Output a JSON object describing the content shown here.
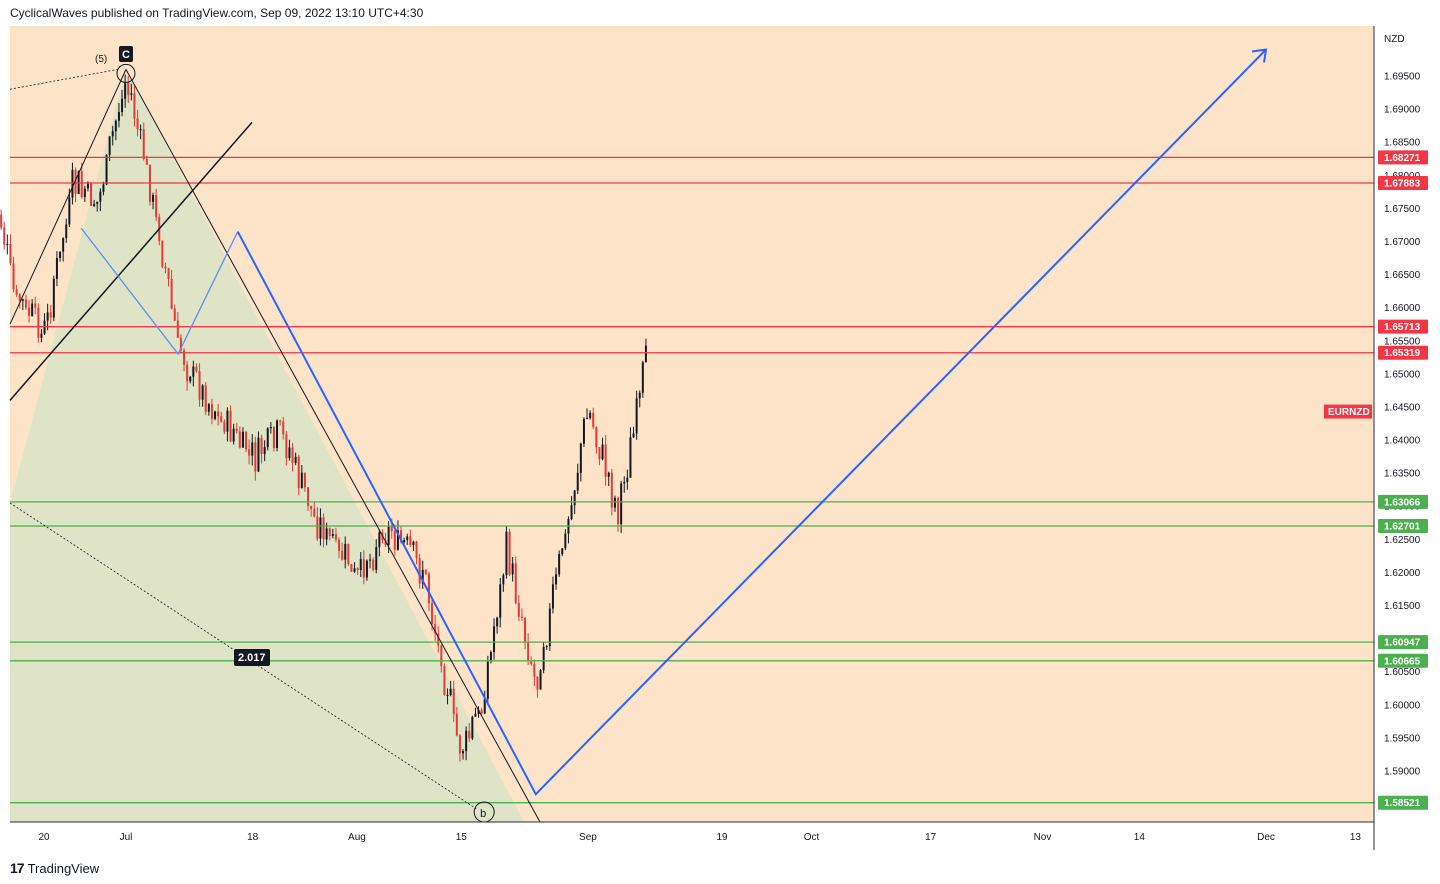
{
  "header": {
    "text": "CyclicalWaves published on TradingView.com, Sep 09, 2022 13:10 UTC+4:30"
  },
  "footer": {
    "logo": "17",
    "brand": "TradingView"
  },
  "colors": {
    "background": "#fde4c8",
    "red_level": "#f23645",
    "green_level": "#4caf50",
    "blue_path": "#2962ff",
    "triangle_fill": "#d8e4c4",
    "up_candle": "#131722",
    "down_candle": "#e53935"
  },
  "chart_data": {
    "type": "candlestick",
    "symbol": "EURNZD",
    "currency": "NZD",
    "x_ticks": [
      {
        "label": "20",
        "date": "2022-06-20"
      },
      {
        "label": "Jul",
        "date": "2022-07-01"
      },
      {
        "label": "18",
        "date": "2022-07-18"
      },
      {
        "label": "Aug",
        "date": "2022-08-01"
      },
      {
        "label": "15",
        "date": "2022-08-15"
      },
      {
        "label": "Sep",
        "date": "2022-09-01"
      },
      {
        "label": "19",
        "date": "2022-09-19"
      },
      {
        "label": "Oct",
        "date": "2022-10-01"
      },
      {
        "label": "17",
        "date": "2022-10-17"
      },
      {
        "label": "Nov",
        "date": "2022-11-01"
      },
      {
        "label": "14",
        "date": "2022-11-14"
      },
      {
        "label": "Dec",
        "date": "2022-12-01"
      },
      {
        "label": "13",
        "date": "2022-12-13"
      }
    ],
    "y_ticks": [
      "1.69500",
      "1.69000",
      "1.68500",
      "1.68000",
      "1.67500",
      "1.67000",
      "1.66500",
      "1.66000",
      "1.65500",
      "1.65000",
      "1.64500",
      "1.64000",
      "1.63500",
      "1.63000",
      "1.62500",
      "1.62000",
      "1.61500",
      "1.61000",
      "1.60500",
      "1.60000",
      "1.59500",
      "1.59000"
    ],
    "ylim": [
      1.5815,
      1.7005
    ],
    "levels": [
      {
        "value": 1.68271,
        "label": "1.68271",
        "color": "red"
      },
      {
        "value": 1.67883,
        "label": "1.67883",
        "color": "red"
      },
      {
        "value": 1.65713,
        "label": "1.65713",
        "color": "red"
      },
      {
        "value": 1.65319,
        "label": "1.65319",
        "color": "red"
      },
      {
        "value": 1.63066,
        "label": "1.63066",
        "color": "green"
      },
      {
        "value": 1.62701,
        "label": "1.62701",
        "color": "green"
      },
      {
        "value": 1.60947,
        "label": "1.60947",
        "color": "green"
      },
      {
        "value": 1.60665,
        "label": "1.60665",
        "color": "green"
      },
      {
        "value": 1.58521,
        "label": "1.58521",
        "color": "green"
      }
    ],
    "symbol_price": 1.6443,
    "annotations": {
      "wave_c": "C",
      "wave_5": "(5)",
      "wave_b": "b",
      "ratio": "2.017"
    },
    "projection": [
      {
        "date": "2022-07-16",
        "price": 1.6715
      },
      {
        "date": "2022-08-25",
        "price": 1.5865
      },
      {
        "date": "2022-12-01",
        "price": 1.699
      }
    ],
    "price_path": [
      {
        "date": "2022-06-13",
        "price": 1.679
      },
      {
        "date": "2022-06-16",
        "price": 1.662
      },
      {
        "date": "2022-06-20",
        "price": 1.656
      },
      {
        "date": "2022-06-24",
        "price": 1.679
      },
      {
        "date": "2022-06-27",
        "price": 1.675
      },
      {
        "date": "2022-07-01",
        "price": 1.695
      },
      {
        "date": "2022-07-05",
        "price": 1.674
      },
      {
        "date": "2022-07-08",
        "price": 1.654
      },
      {
        "date": "2022-07-12",
        "price": 1.646
      },
      {
        "date": "2022-07-18",
        "price": 1.637
      },
      {
        "date": "2022-07-22",
        "price": 1.641
      },
      {
        "date": "2022-07-26",
        "price": 1.629
      },
      {
        "date": "2022-08-01",
        "price": 1.619
      },
      {
        "date": "2022-08-05",
        "price": 1.627
      },
      {
        "date": "2022-08-10",
        "price": 1.62
      },
      {
        "date": "2022-08-15",
        "price": 1.592
      },
      {
        "date": "2022-08-18",
        "price": 1.601
      },
      {
        "date": "2022-08-21",
        "price": 1.624
      },
      {
        "date": "2022-08-25",
        "price": 1.603
      },
      {
        "date": "2022-08-29",
        "price": 1.626
      },
      {
        "date": "2022-09-01",
        "price": 1.645
      },
      {
        "date": "2022-09-05",
        "price": 1.629
      },
      {
        "date": "2022-09-09",
        "price": 1.653
      }
    ]
  }
}
